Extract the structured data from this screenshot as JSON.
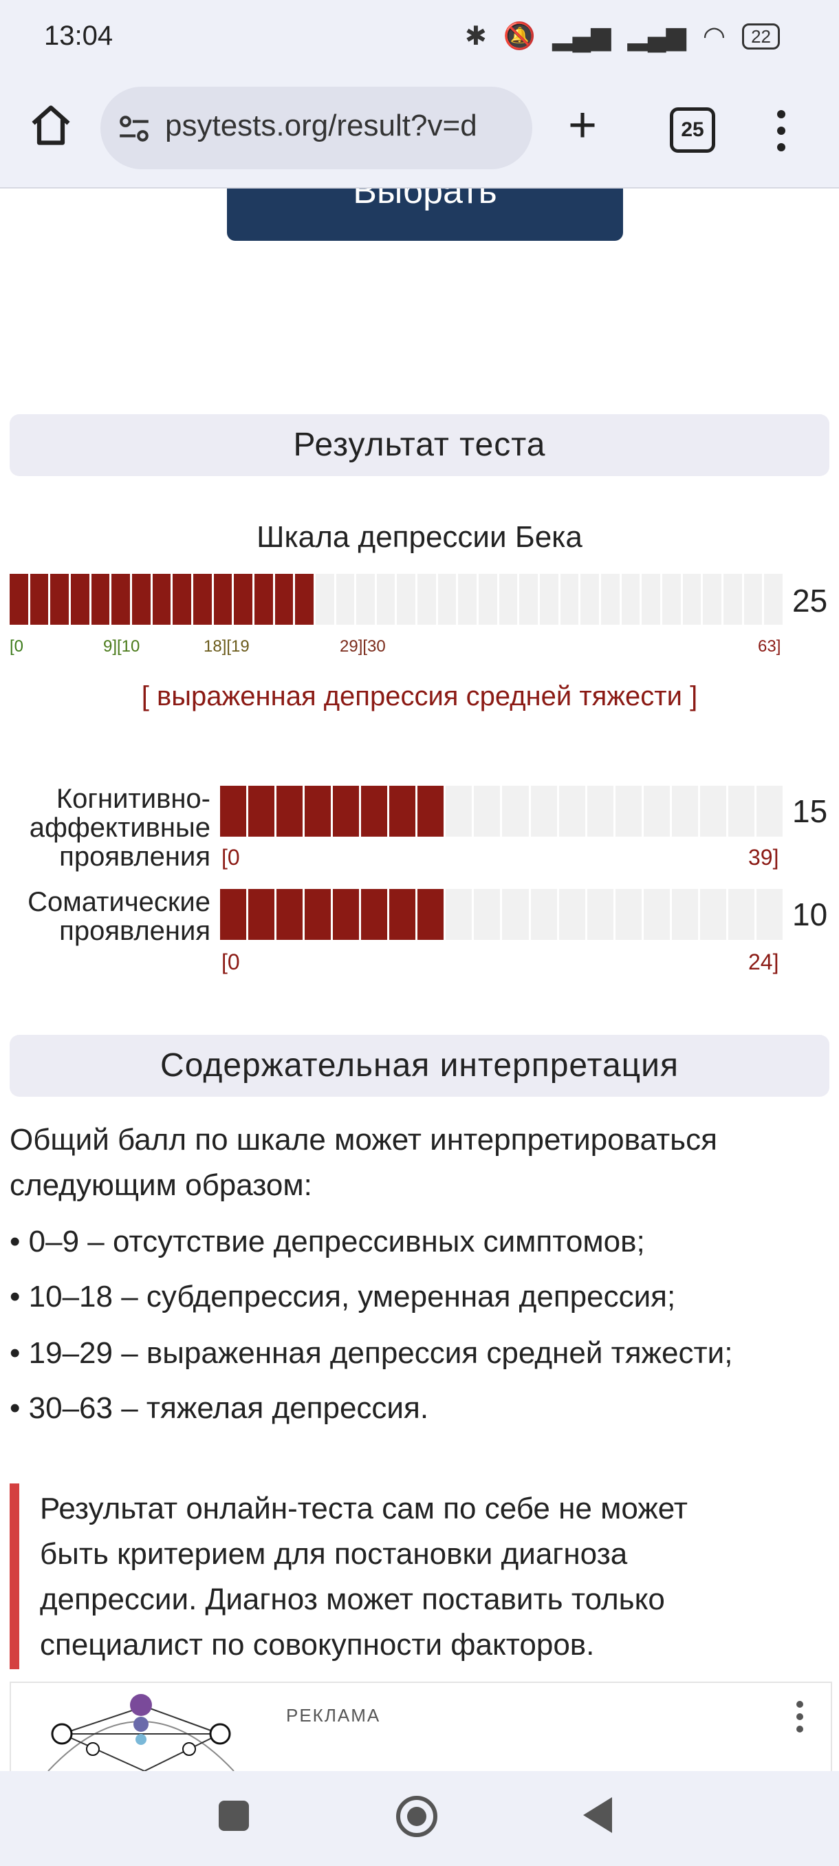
{
  "status_bar": {
    "time": "13:04",
    "battery": "22"
  },
  "browser": {
    "url": "psytests.org/result?v=d",
    "tab_count": "25"
  },
  "page": {
    "select_button": "Выбрать",
    "result_header": "Результат теста",
    "scale": {
      "title": "Шкала депрессии Бека",
      "score": "25",
      "fill_fraction": 0.397,
      "ticks": [
        "[0",
        "9][10",
        "18][19",
        "29][30",
        "63]"
      ],
      "tick_colors": [
        "#3c7a1a",
        "#4a7a1a",
        "#6a5a1a",
        "#7a2a1a",
        "#8b1a14"
      ],
      "verdict": "[ выраженная депрессия средней тяжести ]"
    },
    "subscales": [
      {
        "label_lines": [
          "Когнитивно-",
          "аффективные",
          "проявления"
        ],
        "score": "15",
        "min": "[0",
        "max": "39]",
        "fill_fraction": 0.385
      },
      {
        "label_lines": [
          "Соматические",
          "проявления"
        ],
        "score": "10",
        "min": "[0",
        "max": "24]",
        "fill_fraction": 0.417
      }
    ],
    "interpretation_header": "Содержательная интерпретация",
    "interpretation_intro": [
      "Общий балл по шкале может интерпретироваться",
      "следующим образом:"
    ],
    "interpretation_items": [
      "• 0–9 – отсутствие депрессивных симптомов;",
      "• 10–18 – субдепрессия, умеренная депрессия;",
      "• 19–29 – выраженная депрессия средней тяжести;",
      "• 30–63 – тяжелая депрессия."
    ],
    "note_lines": [
      "Результат онлайн-теста сам по себе не может",
      "быть критерием для постановки диагноза",
      "депрессии. Диагноз может поставить только",
      "специалист по совокупности факторов."
    ],
    "ad_label": "РЕКЛАМА"
  },
  "colors": {
    "bar_fill": "#8b1a14",
    "bar_empty": "#f1f1f1",
    "button": "#1f3a5f",
    "note_accent": "#d44040"
  }
}
